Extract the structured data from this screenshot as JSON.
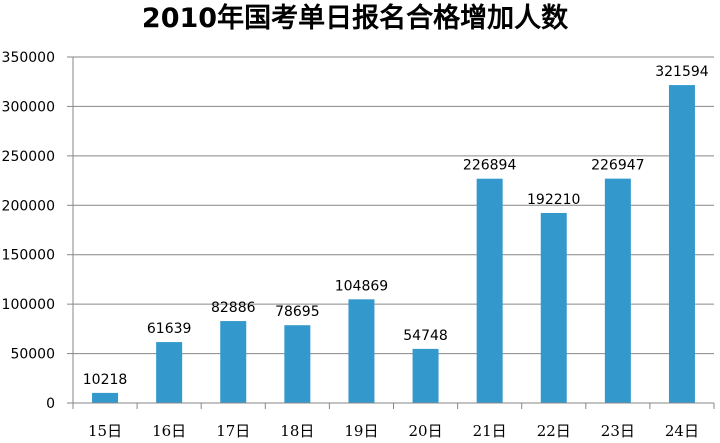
{
  "chart_data": {
    "type": "bar",
    "title": "2010年国考单日报名合格增加人数",
    "categories": [
      "15日",
      "16日",
      "17日",
      "18日",
      "19日",
      "20日",
      "21日",
      "22日",
      "23日",
      "24日"
    ],
    "values": [
      10218,
      61639,
      82886,
      78695,
      104869,
      54748,
      226894,
      192210,
      226947,
      321594
    ],
    "data_labels": [
      "10218",
      "61639",
      "82886",
      "78695",
      "104869",
      "54748",
      "226894",
      "192210",
      "226947",
      "321594"
    ],
    "y_ticks": [
      "0",
      "50000",
      "100000",
      "150000",
      "200000",
      "250000",
      "300000",
      "350000"
    ],
    "ylim": [
      0,
      350000
    ],
    "grid": true,
    "legend": "none",
    "bar_color": "#3399cc",
    "grid_color": "#878787",
    "axis_color": "#878787"
  }
}
